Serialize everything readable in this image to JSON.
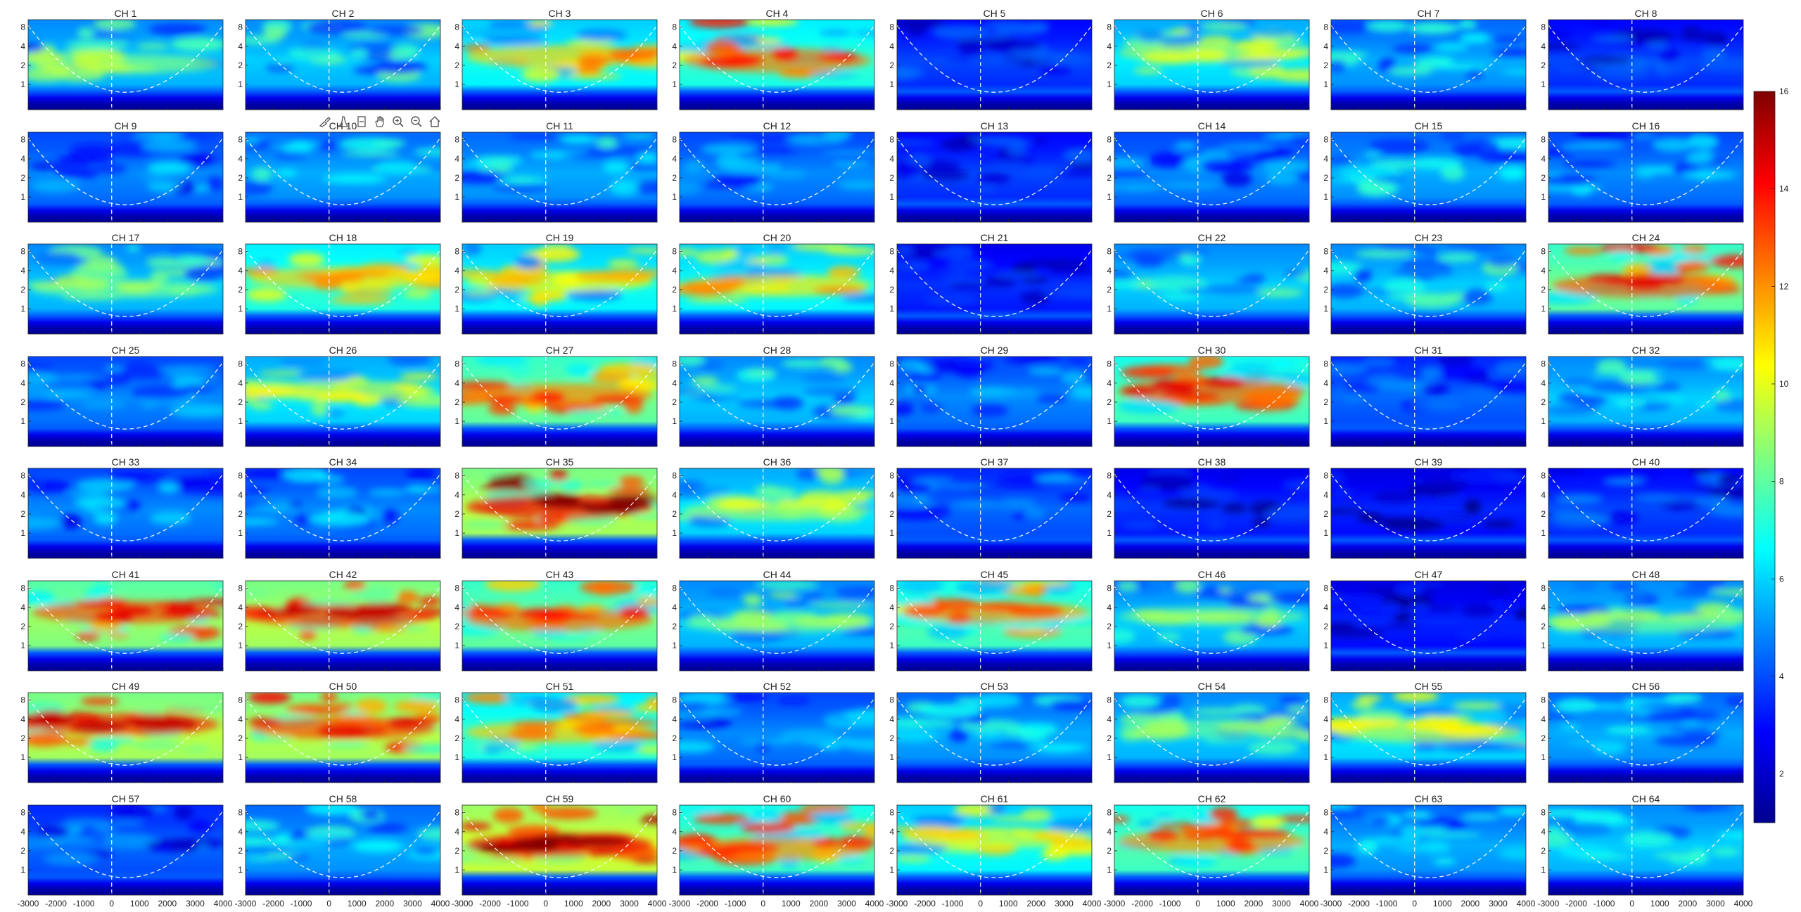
{
  "chart_data": {
    "type": "heatmap",
    "grid": {
      "rows": 8,
      "cols": 8
    },
    "panel_titles": [
      "CH 1",
      "CH 2",
      "CH 3",
      "CH 4",
      "CH 5",
      "CH 6",
      "CH 7",
      "CH 8",
      "CH 9",
      "CH 10",
      "CH 11",
      "CH 12",
      "CH 13",
      "CH 14",
      "CH 15",
      "CH 16",
      "CH 17",
      "CH 18",
      "CH 19",
      "CH 20",
      "CH 21",
      "CH 22",
      "CH 23",
      "CH 24",
      "CH 25",
      "CH 26",
      "CH 27",
      "CH 28",
      "CH 29",
      "CH 30",
      "CH 31",
      "CH 32",
      "CH 33",
      "CH 34",
      "CH 35",
      "CH 36",
      "CH 37",
      "CH 38",
      "CH 39",
      "CH 40",
      "CH 41",
      "CH 42",
      "CH 43",
      "CH 44",
      "CH 45",
      "CH 46",
      "CH 47",
      "CH 48",
      "CH 49",
      "CH 50",
      "CH 51",
      "CH 52",
      "CH 53",
      "CH 54",
      "CH 55",
      "CH 56",
      "CH 57",
      "CH 58",
      "CH 59",
      "CH 60",
      "CH 61",
      "CH 62",
      "CH 63",
      "CH 64"
    ],
    "x_range": [
      -3000,
      4000
    ],
    "x_ticks": [
      -3000,
      -2000,
      -1000,
      0,
      1000,
      2000,
      3000,
      4000
    ],
    "x_tick_labels": [
      "-3000",
      "-2000",
      "-1000",
      "0",
      "1000",
      "2000",
      "3000",
      "4000"
    ],
    "y_scale": "log2",
    "y_ticks": [
      1,
      2,
      4,
      8
    ],
    "y_tick_labels": [
      "1",
      "2",
      "4",
      "8"
    ],
    "y_range": [
      0.4,
      10.5
    ],
    "event_line_x": 0,
    "cone_of_influence": "dashed white",
    "colormap": "jet",
    "colorbar": {
      "range": [
        1,
        16
      ],
      "ticks": [
        2,
        4,
        6,
        8,
        10,
        12,
        14,
        16
      ],
      "tick_labels": [
        "2",
        "4",
        "6",
        "8",
        "10",
        "12",
        "14",
        "16"
      ]
    },
    "panel_peak_power": [
      9.5,
      8.5,
      12.5,
      14,
      4.5,
      10,
      7.5,
      4.5,
      6.5,
      7.5,
      7.5,
      6,
      4.5,
      6,
      7.5,
      6.5,
      9,
      12,
      11.5,
      12,
      4,
      8.5,
      8.5,
      14.5,
      6,
      10.5,
      13.5,
      8.5,
      6,
      14.5,
      5,
      8,
      6.5,
      6.5,
      16,
      10,
      5.5,
      4,
      3.5,
      5,
      14.5,
      15,
      14,
      9,
      13,
      9,
      3.5,
      9,
      15,
      14.5,
      12.5,
      6.5,
      7.5,
      9,
      10.5,
      7,
      5.5,
      7.5,
      16,
      13.5,
      11,
      13.5,
      7,
      7.5
    ],
    "panel_baseline_power": [
      5.5,
      5.5,
      6.5,
      7,
      3.5,
      6,
      5,
      3.5,
      4.5,
      5,
      5,
      4.5,
      3.5,
      4.5,
      5,
      4.5,
      5.5,
      7,
      6.5,
      6.5,
      3.2,
      5.5,
      5.5,
      8,
      4.5,
      6,
      8,
      5.5,
      4.5,
      7.5,
      4,
      5.5,
      4.5,
      4.5,
      9,
      6,
      4,
      3.2,
      3,
      3.5,
      8.5,
      9,
      8,
      5.5,
      7.5,
      5.5,
      3,
      5.5,
      9,
      9,
      7,
      4.5,
      5,
      5.5,
      6,
      5,
      4,
      5,
      9.5,
      7.5,
      6.5,
      7.5,
      5,
      5.5
    ]
  },
  "toolbar": {
    "icons": [
      "brush-icon",
      "datatip-icon",
      "restore-icon",
      "pan-icon",
      "zoom-in-icon",
      "zoom-out-icon",
      "home-icon"
    ]
  }
}
